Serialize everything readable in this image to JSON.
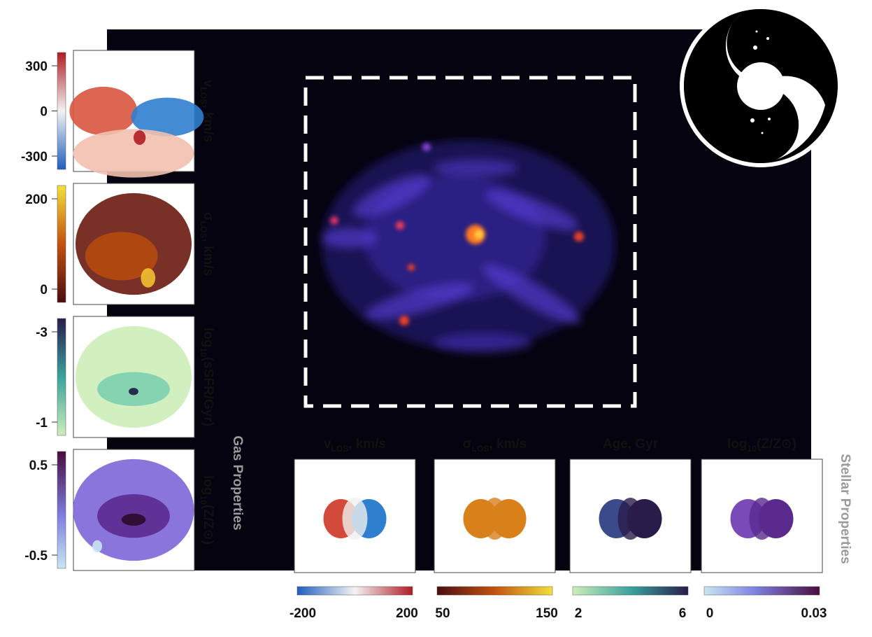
{
  "figure": {
    "gas_heading": "Gas Properties",
    "stellar_heading": "Stellar Properties",
    "gas_panels": [
      {
        "label": {
          "main": "v",
          "sub": "LOS",
          "rest": ", km/s"
        },
        "ticks": [
          "300",
          "0",
          "-300"
        ]
      },
      {
        "label": {
          "main": "σ",
          "sub": "LOS",
          "rest": ", km/s"
        },
        "ticks": [
          "200",
          "0"
        ]
      },
      {
        "label": {
          "main": "log",
          "sub": "10",
          "rest": "(sSFR/Gyr)"
        },
        "ticks": [
          "-3",
          "-1"
        ]
      },
      {
        "label": {
          "main": "log",
          "sub": "10",
          "rest": "(Z/Z⊙)"
        },
        "ticks": [
          "0.5",
          "-0.5"
        ]
      }
    ],
    "stellar_panels": [
      {
        "label": {
          "main": "v",
          "sub": "LOS",
          "rest": ", km/s"
        },
        "ticks": [
          "-200",
          "200"
        ]
      },
      {
        "label": {
          "main": "σ",
          "sub": "LOS",
          "rest": ", km/s"
        },
        "ticks": [
          "50",
          "150"
        ]
      },
      {
        "label": {
          "main": "Age, Gyr"
        },
        "ticks": [
          "2",
          "6"
        ]
      },
      {
        "label": {
          "main": "log",
          "sub": "10",
          "rest": "(Z/Z⊙)"
        },
        "ticks": [
          "0",
          "0.03"
        ]
      }
    ]
  }
}
